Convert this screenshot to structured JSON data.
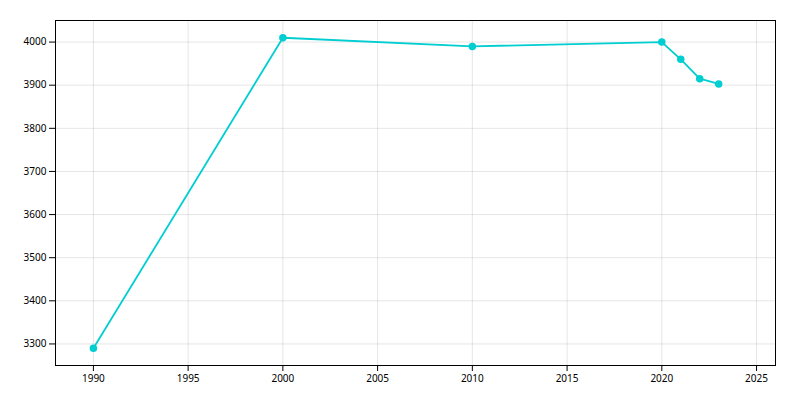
{
  "chart_data": {
    "type": "line",
    "x": [
      1990,
      2000,
      2010,
      2020,
      2021,
      2022,
      2023
    ],
    "values": [
      3290,
      4010,
      3990,
      4000,
      3960,
      3915,
      3903
    ],
    "color": "#00CED1",
    "marker": "circle",
    "xlim": [
      1988,
      2026
    ],
    "ylim": [
      3250,
      4050
    ],
    "xticks": [
      1990,
      1995,
      2000,
      2005,
      2010,
      2015,
      2020,
      2025
    ],
    "yticks": [
      3300,
      3400,
      3500,
      3600,
      3700,
      3800,
      3900,
      4000
    ],
    "grid": true
  }
}
